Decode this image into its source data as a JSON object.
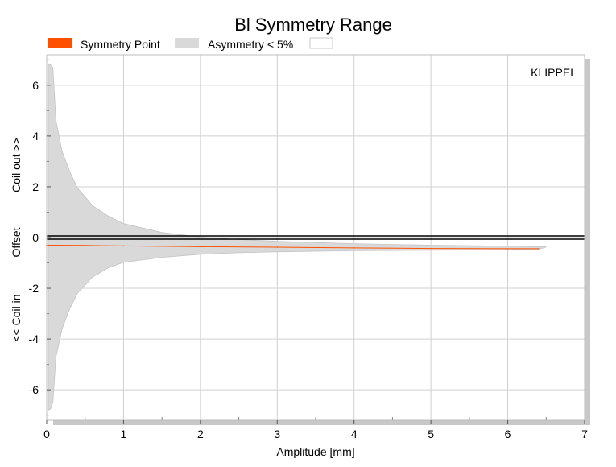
{
  "chart_data": {
    "type": "area",
    "title": "Bl Symmetry Range",
    "xlabel": "Amplitude [mm]",
    "ylabel_top": "Coil out >>",
    "ylabel_mid": "Offset",
    "ylabel_bottom": "<< Coil in",
    "brand": "KLIPPEL",
    "xlim": [
      0,
      7
    ],
    "ylim": [
      -7.2,
      7.2
    ],
    "x_ticks": [
      0,
      1,
      2,
      3,
      4,
      5,
      6,
      7
    ],
    "y_ticks": [
      -6,
      -4,
      -2,
      0,
      2,
      4,
      6
    ],
    "legend": [
      {
        "label": "Symmetry Point",
        "color": "#ff5000"
      },
      {
        "label": "Asymmetry < 5%",
        "color": "#d9d9d9"
      }
    ],
    "grid": true,
    "series": [
      {
        "name": "Symmetry Point",
        "color": "#ff5000",
        "x": [
          0.0,
          0.5,
          1.0,
          2.0,
          3.0,
          4.0,
          5.0,
          6.0,
          6.4
        ],
        "y": [
          -0.3,
          -0.31,
          -0.33,
          -0.36,
          -0.38,
          -0.41,
          -0.43,
          -0.44,
          -0.44
        ]
      },
      {
        "name": "Asymmetry < 5%",
        "color": "#d9d9d9",
        "x": [
          0.02,
          0.05,
          0.08,
          0.12,
          0.2,
          0.3,
          0.4,
          0.6,
          0.8,
          1.0,
          1.5,
          2.0,
          2.5,
          3.0,
          4.0,
          5.0,
          6.0,
          6.4,
          6.5
        ],
        "upper": [
          6.85,
          6.8,
          6.7,
          4.6,
          3.4,
          2.6,
          1.95,
          1.25,
          0.85,
          0.55,
          0.2,
          0.02,
          -0.08,
          -0.15,
          -0.24,
          -0.3,
          -0.34,
          -0.36,
          -0.37
        ],
        "lower": [
          -6.8,
          -6.75,
          -6.5,
          -4.7,
          -3.6,
          -2.8,
          -2.2,
          -1.55,
          -1.2,
          -0.98,
          -0.78,
          -0.66,
          -0.6,
          -0.56,
          -0.52,
          -0.5,
          -0.48,
          -0.46,
          -0.38
        ]
      },
      {
        "name": "Zero line",
        "color": "#000000",
        "y": 0
      }
    ]
  }
}
